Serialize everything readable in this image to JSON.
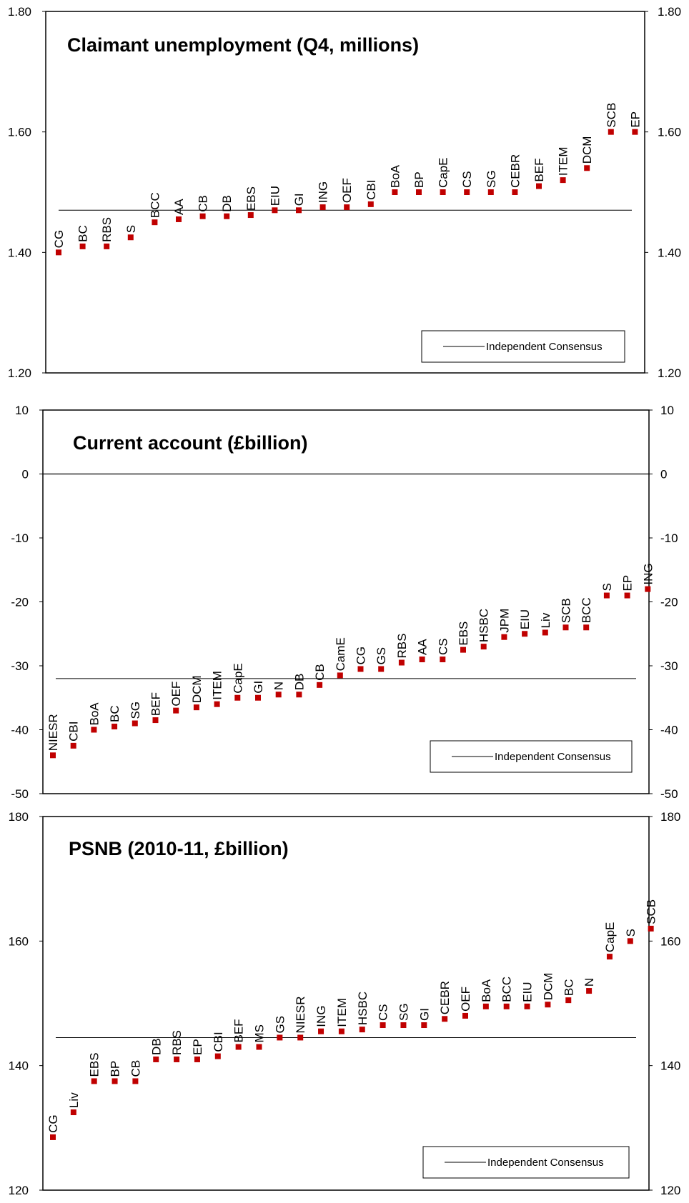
{
  "chart_data": [
    {
      "type": "scatter",
      "title": "Claimant unemployment  (Q4, millions)",
      "ylim": [
        1.2,
        1.8
      ],
      "yticks": [
        "1.20",
        "1.40",
        "1.60",
        "1.80"
      ],
      "consensus": 1.47,
      "legend": "Independent Consensus",
      "legend_position": "bottom-right",
      "series_color": "#c00000",
      "points": [
        {
          "label": "CG",
          "value": 1.4
        },
        {
          "label": "BC",
          "value": 1.41
        },
        {
          "label": "RBS",
          "value": 1.41
        },
        {
          "label": "S",
          "value": 1.425
        },
        {
          "label": "BCC",
          "value": 1.45
        },
        {
          "label": "AA",
          "value": 1.455
        },
        {
          "label": "CB",
          "value": 1.46
        },
        {
          "label": "DB",
          "value": 1.46
        },
        {
          "label": "EBS",
          "value": 1.462
        },
        {
          "label": "EIU",
          "value": 1.47
        },
        {
          "label": "GI",
          "value": 1.47
        },
        {
          "label": "ING",
          "value": 1.475
        },
        {
          "label": "OEF",
          "value": 1.475
        },
        {
          "label": "CBI",
          "value": 1.48
        },
        {
          "label": "BoA",
          "value": 1.5
        },
        {
          "label": "BP",
          "value": 1.5
        },
        {
          "label": "CapE",
          "value": 1.5
        },
        {
          "label": "CS",
          "value": 1.5
        },
        {
          "label": "SG",
          "value": 1.5
        },
        {
          "label": "CEBR",
          "value": 1.5
        },
        {
          "label": "BEF",
          "value": 1.51
        },
        {
          "label": "ITEM",
          "value": 1.52
        },
        {
          "label": "DCM",
          "value": 1.54
        },
        {
          "label": "SCB",
          "value": 1.6
        },
        {
          "label": "EP",
          "value": 1.6
        }
      ]
    },
    {
      "type": "scatter",
      "title": "Current account (£billion)",
      "ylim": [
        -50,
        10
      ],
      "yticks": [
        "-50",
        "-40",
        "-30",
        "-20",
        "-10",
        "0",
        "10"
      ],
      "consensus": -32,
      "legend": "Independent Consensus",
      "legend_position": "bottom-right",
      "series_color": "#c00000",
      "points": [
        {
          "label": "NIESR",
          "value": -44
        },
        {
          "label": "CBI",
          "value": -42.5
        },
        {
          "label": "BoA",
          "value": -40
        },
        {
          "label": "BC",
          "value": -39.5
        },
        {
          "label": "SG",
          "value": -39
        },
        {
          "label": "BEF",
          "value": -38.5
        },
        {
          "label": "OEF",
          "value": -37
        },
        {
          "label": "DCM",
          "value": -36.5
        },
        {
          "label": "ITEM",
          "value": -36
        },
        {
          "label": "CapE",
          "value": -35
        },
        {
          "label": "GI",
          "value": -35
        },
        {
          "label": "N",
          "value": -34.5
        },
        {
          "label": "DB",
          "value": -34.5
        },
        {
          "label": "CB",
          "value": -33
        },
        {
          "label": "CamE",
          "value": -31.5
        },
        {
          "label": "CG",
          "value": -30.5
        },
        {
          "label": "GS",
          "value": -30.5
        },
        {
          "label": "RBS",
          "value": -29.5
        },
        {
          "label": "AA",
          "value": -29
        },
        {
          "label": "CS",
          "value": -29
        },
        {
          "label": "EBS",
          "value": -27.5
        },
        {
          "label": "HSBC",
          "value": -27
        },
        {
          "label": "JPM",
          "value": -25.5
        },
        {
          "label": "EIU",
          "value": -25
        },
        {
          "label": "Liv",
          "value": -24.8
        },
        {
          "label": "SCB",
          "value": -24
        },
        {
          "label": "BCC",
          "value": -24
        },
        {
          "label": "S",
          "value": -19
        },
        {
          "label": "EP",
          "value": -19
        },
        {
          "label": "ING",
          "value": -18
        }
      ]
    },
    {
      "type": "scatter",
      "title": "PSNB (2010-11, £billion)",
      "ylim": [
        120,
        180
      ],
      "yticks": [
        "120",
        "140",
        "160",
        "180"
      ],
      "consensus": 144.5,
      "legend": "Independent Consensus",
      "legend_position": "bottom-right",
      "series_color": "#c00000",
      "points": [
        {
          "label": "CG",
          "value": 128.5
        },
        {
          "label": "Liv",
          "value": 132.5
        },
        {
          "label": "EBS",
          "value": 137.5
        },
        {
          "label": "BP",
          "value": 137.5
        },
        {
          "label": "CB",
          "value": 137.5
        },
        {
          "label": "DB",
          "value": 141
        },
        {
          "label": "RBS",
          "value": 141
        },
        {
          "label": "EP",
          "value": 141
        },
        {
          "label": "CBI",
          "value": 141.5
        },
        {
          "label": "BEF",
          "value": 143
        },
        {
          "label": "MS",
          "value": 143
        },
        {
          "label": "GS",
          "value": 144.5
        },
        {
          "label": "NIESR",
          "value": 144.5
        },
        {
          "label": "ING",
          "value": 145.5
        },
        {
          "label": "ITEM",
          "value": 145.5
        },
        {
          "label": "HSBC",
          "value": 145.8
        },
        {
          "label": "CS",
          "value": 146.5
        },
        {
          "label": "SG",
          "value": 146.5
        },
        {
          "label": "GI",
          "value": 146.5
        },
        {
          "label": "CEBR",
          "value": 147.5
        },
        {
          "label": "OEF",
          "value": 148
        },
        {
          "label": "BoA",
          "value": 149.5
        },
        {
          "label": "BCC",
          "value": 149.5
        },
        {
          "label": "EIU",
          "value": 149.5
        },
        {
          "label": "DCM",
          "value": 149.8
        },
        {
          "label": "BC",
          "value": 150.5
        },
        {
          "label": "N",
          "value": 152
        },
        {
          "label": "CapE",
          "value": 157.5
        },
        {
          "label": "S",
          "value": 160
        },
        {
          "label": "SCB",
          "value": 162
        }
      ]
    }
  ]
}
